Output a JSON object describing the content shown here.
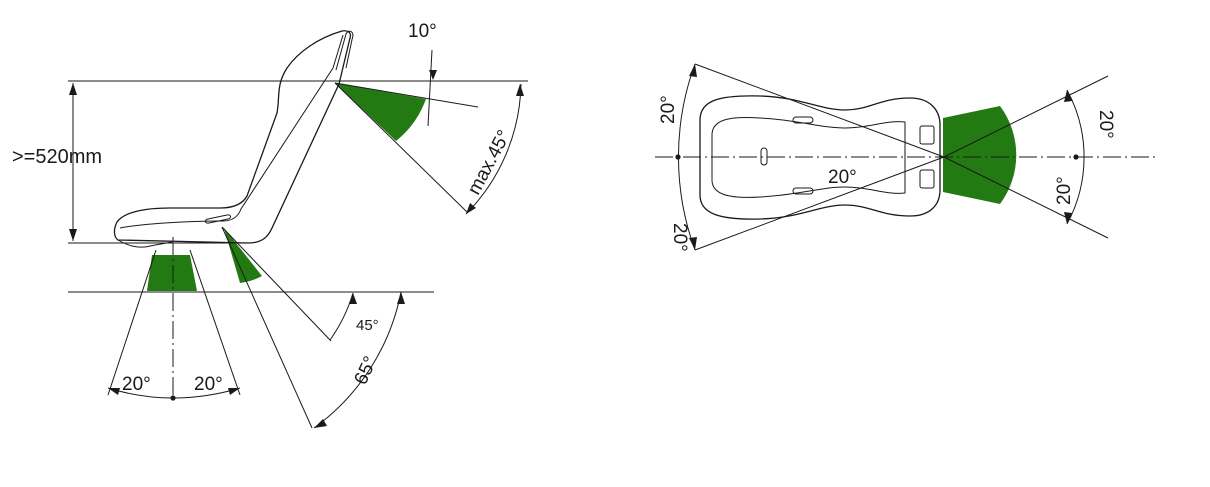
{
  "colors": {
    "highlight": "#237a12",
    "line": "#1a1a1a",
    "background": "#ffffff"
  },
  "side_view": {
    "height_label": ">=520mm",
    "head_tilt_label": "10°",
    "head_max_label": "max.45°",
    "belt_45_label": "45°",
    "belt_65_label": "65°",
    "crotch_left_label": "20°",
    "crotch_right_label": "20°"
  },
  "top_view": {
    "left_upper_label": "20°",
    "left_lower_label": "20°",
    "center_label": "20°",
    "right_upper_label": "20°",
    "right_lower_label": "20°"
  }
}
